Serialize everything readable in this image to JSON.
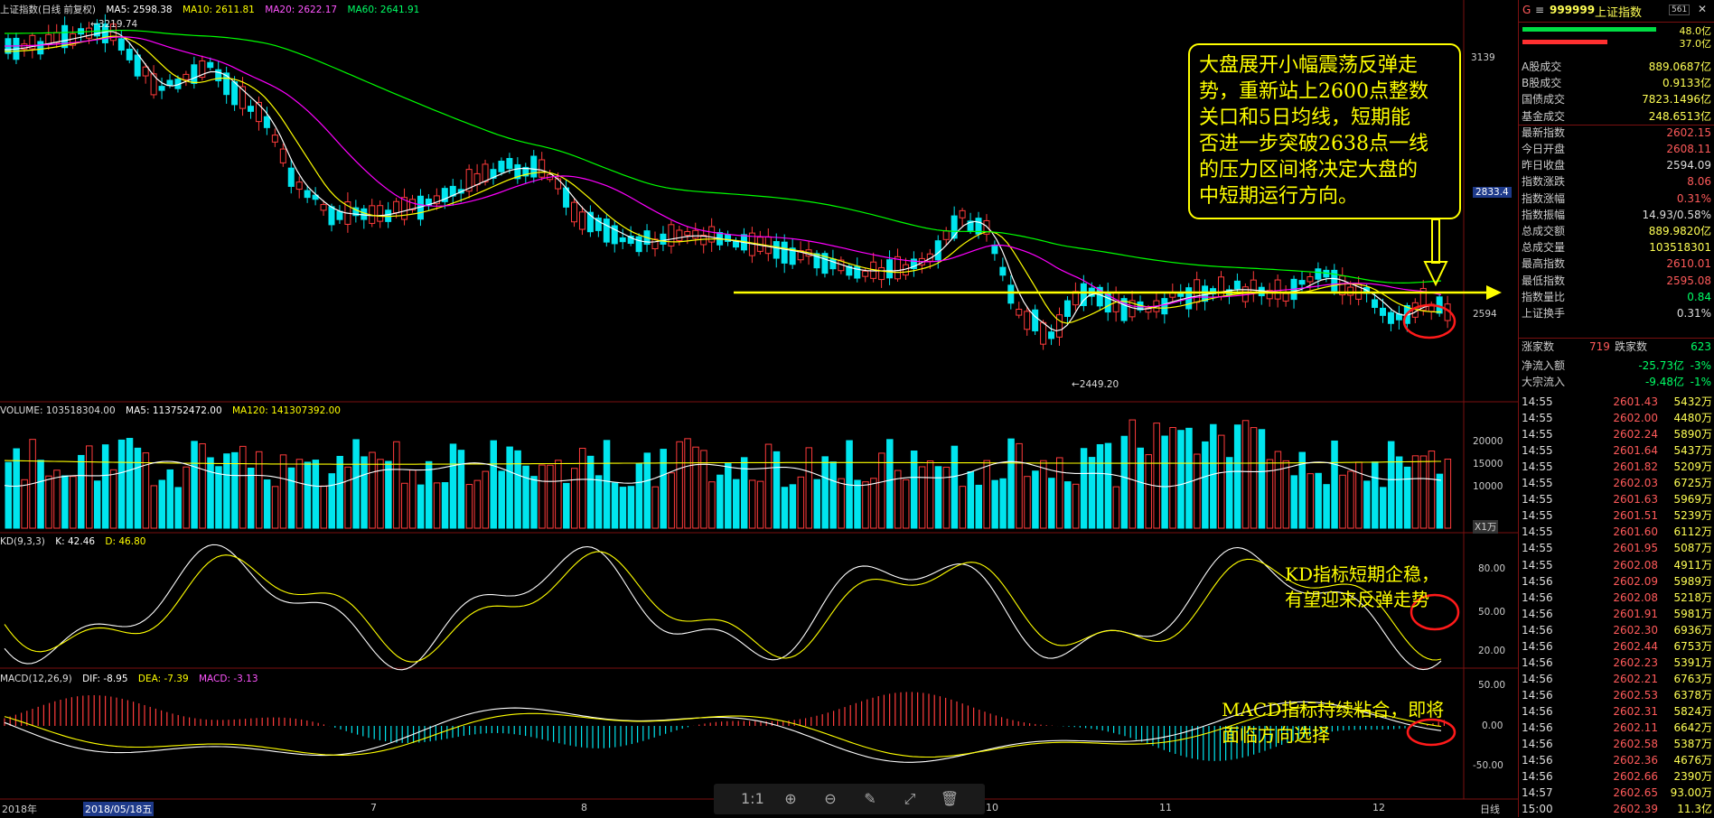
{
  "header": {
    "title": "上证指数(日线 前复权)",
    "ma5": "MA5: 2598.38",
    "ma10": "MA10: 2611.81",
    "ma20": "MA20: 2622.17",
    "ma60": "MA60: 2641.91"
  },
  "price_axis": {
    "hi": "3139",
    "mid_box": "2833.4",
    "lo": "2594"
  },
  "markers": {
    "high": "3219.74",
    "low": "2449.20"
  },
  "volume_header": {
    "label": "VOLUME: 103518304.00",
    "ma5": "MA5: 113752472.00",
    "ma120": "MA120: 141307392.00",
    "ticks": [
      "20000",
      "15000",
      "10000"
    ],
    "unit": "X1万"
  },
  "kd_header": {
    "label": "KD(9,3,3)",
    "k": "K: 42.46",
    "d": "D: 46.80",
    "ticks": [
      "80.00",
      "50.00",
      "20.00"
    ]
  },
  "macd_header": {
    "label": "MACD(12,26,9)",
    "dif": "DIF: -8.95",
    "dea": "DEA: -7.39",
    "macd": "MACD: -3.13",
    "ticks": [
      "50.00",
      "0.00",
      "-50.00"
    ]
  },
  "x_axis": {
    "labels": [
      "2018年",
      "2018/05/18五",
      "7",
      "8",
      "9",
      "10",
      "11",
      "12"
    ],
    "period": "日线"
  },
  "annotations": {
    "callout": "大盘展开小幅震荡反弹走\n势，重新站上2600点整数\n关口和5日均线，短期能\n否进一步突破2638点一线\n的压力区间将决定大盘的\n中短期运行方向。",
    "kd": "KD指标短期企稳，\n有望迎来反弹走势",
    "macd": "MACD指标持续粘合，即将\n面临方向选择"
  },
  "sidebar": {
    "code_prefix": "G",
    "code": "999999",
    "name": "上证指数",
    "badge": "561",
    "ratio_up": "48.0亿",
    "ratio_down": "37.0亿",
    "stats": [
      {
        "k": "A股成交",
        "v": "889.0687亿",
        "c": "#ffff55"
      },
      {
        "k": "B股成交",
        "v": "0.9133亿",
        "c": "#ffff55"
      },
      {
        "k": "国债成交",
        "v": "7823.1496亿",
        "c": "#ffff55"
      },
      {
        "k": "基金成交",
        "v": "248.6513亿",
        "c": "#ffff55"
      },
      {
        "k": "最新指数",
        "v": "2602.15",
        "c": "#ff5a5a"
      },
      {
        "k": "今日开盘",
        "v": "2608.11",
        "c": "#ff5a5a"
      },
      {
        "k": "昨日收盘",
        "v": "2594.09",
        "c": "#dddddd"
      },
      {
        "k": "指数涨跌",
        "v": "8.06",
        "c": "#ff5a5a"
      },
      {
        "k": "指数涨幅",
        "v": "0.31%",
        "c": "#ff5a5a"
      },
      {
        "k": "指数振幅",
        "v": "14.93/0.58%",
        "c": "#dddddd"
      },
      {
        "k": "总成交额",
        "v": "889.9820亿",
        "c": "#ffff55"
      },
      {
        "k": "总成交量",
        "v": "103518301",
        "c": "#ffff55"
      },
      {
        "k": "最高指数",
        "v": "2610.01",
        "c": "#ff5a5a"
      },
      {
        "k": "最低指数",
        "v": "2595.08",
        "c": "#ff5a5a"
      },
      {
        "k": "指数量比",
        "v": "0.84",
        "c": "#00ff66"
      },
      {
        "k": "上证换手",
        "v": "0.31%",
        "c": "#dddddd"
      }
    ],
    "updown": {
      "up_label": "涨家数",
      "up": "719",
      "down_label": "跌家数",
      "down": "623"
    },
    "flows": [
      {
        "k": "净流入额",
        "v": "-25.73亿",
        "pct": "-3%"
      },
      {
        "k": "大宗流入",
        "v": "-9.48亿",
        "pct": "-1%"
      }
    ],
    "ticks": [
      {
        "t": "14:55",
        "p": "2601.43",
        "v": "5432万"
      },
      {
        "t": "14:55",
        "p": "2602.00",
        "v": "4480万"
      },
      {
        "t": "14:55",
        "p": "2602.24",
        "v": "5890万"
      },
      {
        "t": "14:55",
        "p": "2601.64",
        "v": "5437万"
      },
      {
        "t": "14:55",
        "p": "2601.82",
        "v": "5209万"
      },
      {
        "t": "14:55",
        "p": "2602.03",
        "v": "6725万"
      },
      {
        "t": "14:55",
        "p": "2601.63",
        "v": "5969万"
      },
      {
        "t": "14:55",
        "p": "2601.51",
        "v": "5239万"
      },
      {
        "t": "14:55",
        "p": "2601.60",
        "v": "6112万"
      },
      {
        "t": "14:55",
        "p": "2601.95",
        "v": "5087万"
      },
      {
        "t": "14:55",
        "p": "2602.08",
        "v": "4911万"
      },
      {
        "t": "14:56",
        "p": "2602.09",
        "v": "5989万"
      },
      {
        "t": "14:56",
        "p": "2602.08",
        "v": "5218万"
      },
      {
        "t": "14:56",
        "p": "2601.91",
        "v": "5981万"
      },
      {
        "t": "14:56",
        "p": "2602.30",
        "v": "6936万"
      },
      {
        "t": "14:56",
        "p": "2602.44",
        "v": "6753万"
      },
      {
        "t": "14:56",
        "p": "2602.23",
        "v": "5391万"
      },
      {
        "t": "14:56",
        "p": "2602.21",
        "v": "6763万"
      },
      {
        "t": "14:56",
        "p": "2602.53",
        "v": "6378万"
      },
      {
        "t": "14:56",
        "p": "2602.31",
        "v": "5824万"
      },
      {
        "t": "14:56",
        "p": "2602.11",
        "v": "6642万"
      },
      {
        "t": "14:56",
        "p": "2602.58",
        "v": "5387万"
      },
      {
        "t": "14:56",
        "p": "2602.36",
        "v": "4676万"
      },
      {
        "t": "14:56",
        "p": "2602.66",
        "v": "2390万"
      },
      {
        "t": "14:57",
        "p": "2602.65",
        "v": "93.00万"
      },
      {
        "t": "15:00",
        "p": "2602.39",
        "v": "11.3亿"
      }
    ]
  },
  "colors": {
    "up": "#ff3b3b",
    "down": "#00e5ee",
    "ma5": "#ffffff",
    "ma10": "#ffff00",
    "ma20": "#ff00ff",
    "ma60": "#00ff00",
    "annotation": "#ffff00"
  }
}
